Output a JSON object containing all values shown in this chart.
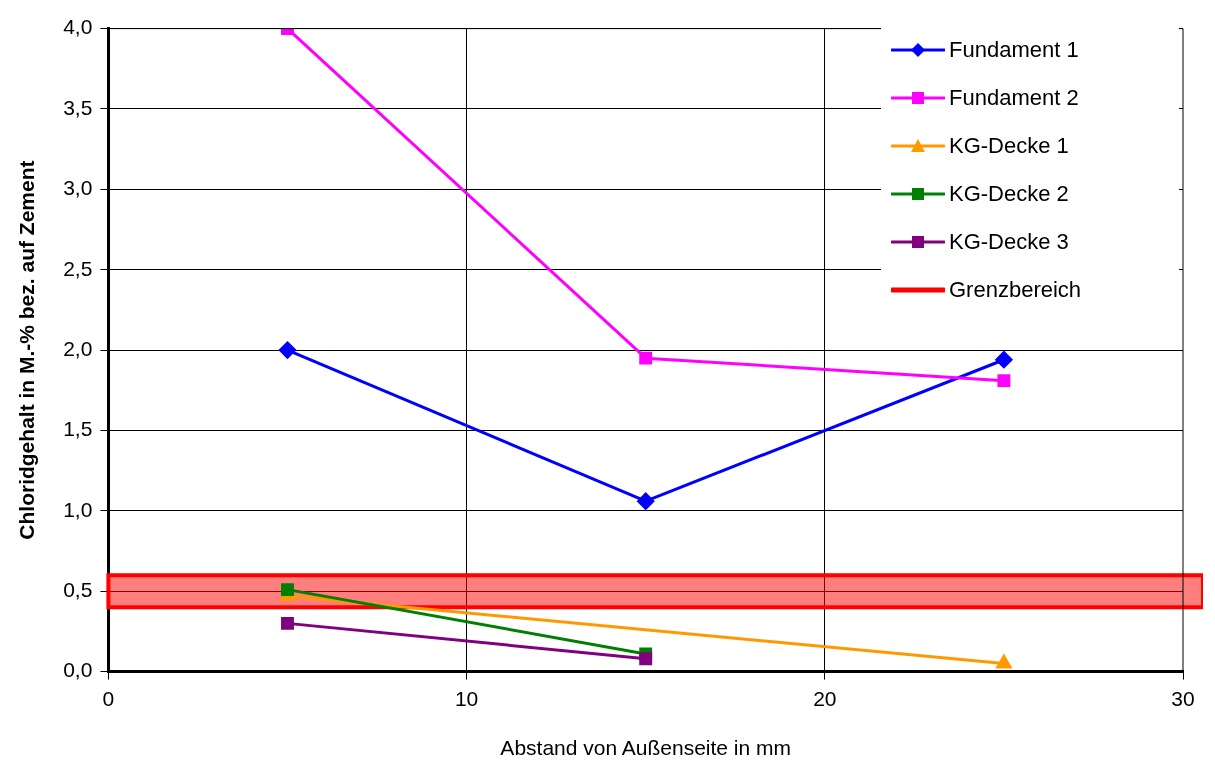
{
  "chart_data": {
    "type": "line",
    "xlabel": "Abstand von Außenseite in mm",
    "ylabel": "Chloridgehalt in M.-% bez. auf Zement",
    "xlim": [
      0,
      30
    ],
    "xticks": [
      0,
      10,
      20,
      30
    ],
    "ylim": [
      0,
      4
    ],
    "yticks": [
      {
        "value": 0,
        "label": "0,0"
      },
      {
        "value": 0.5,
        "label": "0,5"
      },
      {
        "value": 1,
        "label": "1,0"
      },
      {
        "value": 1.5,
        "label": "1,5"
      },
      {
        "value": 2,
        "label": "2,0"
      },
      {
        "value": 2.5,
        "label": "2,5"
      },
      {
        "value": 3,
        "label": "3,0"
      },
      {
        "value": 3.5,
        "label": "3,5"
      },
      {
        "value": 4,
        "label": "4,0"
      }
    ],
    "grid": true,
    "legend": "top right",
    "line_style": "solid",
    "series": [
      {
        "name": "Fundament 1",
        "color": "#0000ff",
        "marker": "diamond",
        "x": [
          5,
          15,
          25
        ],
        "values": [
          2.0,
          1.06,
          1.94
        ]
      },
      {
        "name": "Fundament 2",
        "color": "#ff00ff",
        "marker": "square",
        "x": [
          5,
          15,
          25
        ],
        "values": [
          4.0,
          1.95,
          1.81
        ]
      },
      {
        "name": "KG-Decke 1",
        "color": "#ff9900",
        "marker": "triangle",
        "x": [
          5,
          25
        ],
        "values": [
          0.47,
          0.05
        ]
      },
      {
        "name": "KG-Decke 2",
        "color": "#008000",
        "marker": "square",
        "x": [
          5,
          15
        ],
        "values": [
          0.51,
          0.11
        ]
      },
      {
        "name": "KG-Decke 3",
        "color": "#800080",
        "marker": "square",
        "x": [
          5,
          15
        ],
        "values": [
          0.3,
          0.08
        ]
      }
    ],
    "bands": [
      {
        "axis": "y",
        "from": 0.4,
        "to": 0.6,
        "label": "Grenzbereich",
        "color": "#ff0000"
      }
    ]
  }
}
